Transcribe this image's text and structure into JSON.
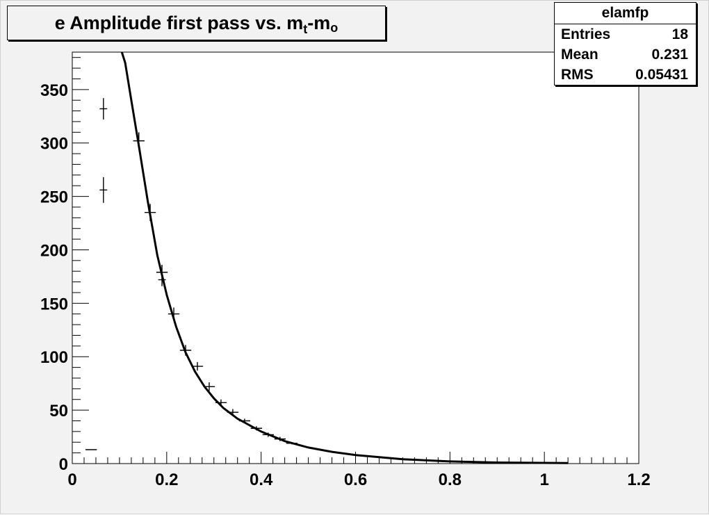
{
  "title": {
    "main": "e Amplitude first pass vs. m",
    "sub_t": "t",
    "dash": "-m",
    "sub_o": "o"
  },
  "stats": {
    "name": "elamfp",
    "rows": [
      {
        "label": "Entries",
        "value": "18"
      },
      {
        "label": "Mean",
        "value": "0.231"
      },
      {
        "label": "RMS",
        "value": "0.05431"
      }
    ]
  },
  "colors": {
    "background": "#f2f2f2",
    "frame": "#ffffff",
    "ink": "#000000"
  },
  "chart_data": {
    "type": "scatter",
    "title": "e Amplitude first pass vs. m_t-m_o",
    "xlabel": "",
    "ylabel": "",
    "xlim": [
      0,
      1.2
    ],
    "ylim": [
      0,
      385
    ],
    "grid": false,
    "legend": "none",
    "x_ticks": [
      0,
      0.2,
      0.4,
      0.6,
      0.8,
      1,
      1.2
    ],
    "x_tick_labels": [
      "0",
      "0.2",
      "0.4",
      "0.6",
      "0.8",
      "1",
      "1.2"
    ],
    "y_ticks": [
      0,
      50,
      100,
      150,
      200,
      250,
      300,
      350
    ],
    "y_tick_labels": [
      "0",
      "50",
      "100",
      "150",
      "200",
      "250",
      "300",
      "350"
    ],
    "points": [
      {
        "x": 0.04,
        "y": 13,
        "ex": 0.012,
        "ey": 0
      },
      {
        "x": 0.066,
        "y": 332,
        "ex": 0.008,
        "ey": 10
      },
      {
        "x": 0.066,
        "y": 256,
        "ex": 0.008,
        "ey": 12
      },
      {
        "x": 0.141,
        "y": 302,
        "ex": 0.012,
        "ey": 8
      },
      {
        "x": 0.165,
        "y": 235,
        "ex": 0.012,
        "ey": 8
      },
      {
        "x": 0.19,
        "y": 179,
        "ex": 0.012,
        "ey": 7
      },
      {
        "x": 0.19,
        "y": 172,
        "ex": 0.008,
        "ey": 6
      },
      {
        "x": 0.215,
        "y": 140,
        "ex": 0.012,
        "ey": 6
      },
      {
        "x": 0.24,
        "y": 106,
        "ex": 0.012,
        "ey": 5
      },
      {
        "x": 0.265,
        "y": 91,
        "ex": 0.012,
        "ey": 4
      },
      {
        "x": 0.29,
        "y": 72,
        "ex": 0.012,
        "ey": 4
      },
      {
        "x": 0.315,
        "y": 57,
        "ex": 0.012,
        "ey": 3
      },
      {
        "x": 0.34,
        "y": 48,
        "ex": 0.012,
        "ey": 3
      },
      {
        "x": 0.365,
        "y": 40,
        "ex": 0.012,
        "ey": 2
      },
      {
        "x": 0.39,
        "y": 33,
        "ex": 0.012,
        "ey": 2
      },
      {
        "x": 0.415,
        "y": 27,
        "ex": 0.012,
        "ey": 2
      },
      {
        "x": 0.44,
        "y": 23,
        "ex": 0.012,
        "ey": 2
      },
      {
        "x": 0.465,
        "y": 19,
        "ex": 0.012,
        "ey": 1
      }
    ],
    "fit_curve": [
      {
        "x": 0.105,
        "y": 385
      },
      {
        "x": 0.112,
        "y": 375
      },
      {
        "x": 0.125,
        "y": 340
      },
      {
        "x": 0.14,
        "y": 300
      },
      {
        "x": 0.16,
        "y": 245
      },
      {
        "x": 0.18,
        "y": 195
      },
      {
        "x": 0.2,
        "y": 158
      },
      {
        "x": 0.22,
        "y": 128
      },
      {
        "x": 0.24,
        "y": 104
      },
      {
        "x": 0.26,
        "y": 86
      },
      {
        "x": 0.28,
        "y": 72
      },
      {
        "x": 0.3,
        "y": 61
      },
      {
        "x": 0.32,
        "y": 52
      },
      {
        "x": 0.35,
        "y": 42
      },
      {
        "x": 0.4,
        "y": 30
      },
      {
        "x": 0.45,
        "y": 21
      },
      {
        "x": 0.5,
        "y": 15
      },
      {
        "x": 0.55,
        "y": 11
      },
      {
        "x": 0.6,
        "y": 8
      },
      {
        "x": 0.7,
        "y": 4
      },
      {
        "x": 0.8,
        "y": 2
      },
      {
        "x": 0.9,
        "y": 1
      },
      {
        "x": 1.05,
        "y": 0.5
      }
    ]
  }
}
